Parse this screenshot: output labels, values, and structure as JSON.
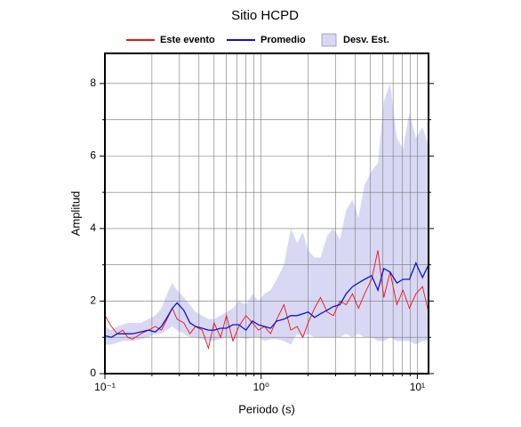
{
  "chart_data": {
    "type": "line",
    "title": "Sitio HCPD",
    "x_label": "Periodo (s)",
    "y_label": "Amplitud",
    "xlog": true,
    "grid": true,
    "xlim": [
      0.1,
      11.8
    ],
    "ylim": [
      0,
      8.83
    ],
    "xticks": [
      {
        "value": 0.1,
        "label": "10⁻¹"
      },
      {
        "value": 1,
        "label": "10⁰"
      },
      {
        "value": 10,
        "label": "10¹"
      }
    ],
    "xminor": [
      0.2,
      0.3,
      0.4,
      0.5,
      0.6,
      0.7,
      0.8,
      0.9,
      2,
      3,
      4,
      5,
      6,
      7,
      8,
      9
    ],
    "yticks": [
      0,
      2,
      4,
      6,
      8
    ],
    "yminor": [
      1,
      3,
      5,
      7
    ],
    "x": [
      0.1,
      0.11,
      0.12,
      0.13,
      0.14,
      0.15,
      0.17,
      0.19,
      0.21,
      0.23,
      0.25,
      0.27,
      0.29,
      0.32,
      0.35,
      0.38,
      0.42,
      0.46,
      0.5,
      0.55,
      0.6,
      0.66,
      0.72,
      0.8,
      0.88,
      0.96,
      1.05,
      1.15,
      1.26,
      1.4,
      1.55,
      1.7,
      1.85,
      2.0,
      2.2,
      2.4,
      2.65,
      2.9,
      3.2,
      3.5,
      3.85,
      4.2,
      4.6,
      5.1,
      5.6,
      6.1,
      6.7,
      7.4,
      8.1,
      8.9,
      9.8,
      10.8,
      11.8
    ],
    "series": [
      {
        "name": "Este evento",
        "color": "#ee1111",
        "values": [
          1.6,
          1.3,
          1.1,
          1.2,
          1.0,
          0.95,
          1.1,
          1.2,
          1.3,
          1.2,
          1.5,
          1.8,
          1.5,
          1.4,
          1.1,
          1.3,
          1.2,
          0.7,
          1.4,
          1.0,
          1.6,
          0.9,
          1.3,
          1.6,
          1.4,
          1.2,
          1.3,
          1.1,
          1.5,
          1.9,
          1.2,
          1.3,
          1.0,
          1.4,
          1.8,
          2.1,
          1.7,
          1.6,
          2.0,
          1.9,
          2.2,
          1.8,
          2.2,
          2.6,
          3.4,
          2.1,
          2.8,
          1.9,
          2.3,
          1.8,
          2.2,
          2.4,
          1.7
        ]
      },
      {
        "name": "Promedio",
        "color": "#1111cc",
        "values": [
          1.05,
          1.0,
          1.1,
          1.1,
          1.1,
          1.1,
          1.15,
          1.2,
          1.15,
          1.3,
          1.55,
          1.8,
          1.95,
          1.75,
          1.4,
          1.3,
          1.25,
          1.2,
          1.2,
          1.25,
          1.25,
          1.35,
          1.35,
          1.2,
          1.45,
          1.35,
          1.3,
          1.25,
          1.45,
          1.5,
          1.6,
          1.6,
          1.65,
          1.7,
          1.55,
          1.65,
          1.75,
          1.85,
          1.9,
          2.2,
          2.4,
          2.5,
          2.6,
          2.7,
          2.3,
          2.9,
          2.8,
          2.5,
          2.6,
          2.6,
          3.05,
          2.65,
          3.0
        ]
      },
      {
        "name": "Desv. Est.",
        "color": "#d8d8f5",
        "lower": [
          0.8,
          0.8,
          0.85,
          0.9,
          0.9,
          0.9,
          0.95,
          1.0,
          1.1,
          1.1,
          1.2,
          1.3,
          1.2,
          1.1,
          1.0,
          1.0,
          0.95,
          0.9,
          0.9,
          0.95,
          1.0,
          0.95,
          1.0,
          0.95,
          1.0,
          1.0,
          0.9,
          0.95,
          0.95,
          0.9,
          0.8,
          1.1,
          1.0,
          1.1,
          1.0,
          1.0,
          1.0,
          1.0,
          1.0,
          1.1,
          1.0,
          1.1,
          1.0,
          1.0,
          0.9,
          0.9,
          1.0,
          0.9,
          0.9,
          0.9,
          0.8,
          0.9,
          0.9
        ],
        "upper": [
          1.3,
          1.2,
          1.3,
          1.35,
          1.4,
          1.4,
          1.4,
          1.5,
          1.6,
          1.8,
          2.2,
          2.5,
          2.3,
          2.1,
          1.9,
          1.7,
          1.6,
          1.5,
          1.5,
          1.6,
          1.7,
          1.8,
          2.0,
          1.9,
          2.2,
          2.0,
          2.2,
          2.3,
          2.6,
          3.0,
          4.0,
          3.6,
          3.9,
          3.4,
          3.2,
          3.2,
          3.8,
          4.0,
          3.7,
          4.5,
          4.8,
          4.3,
          5.2,
          5.6,
          5.8,
          7.5,
          8.0,
          6.5,
          6.2,
          7.2,
          6.5,
          6.8,
          6.3
        ]
      }
    ]
  }
}
